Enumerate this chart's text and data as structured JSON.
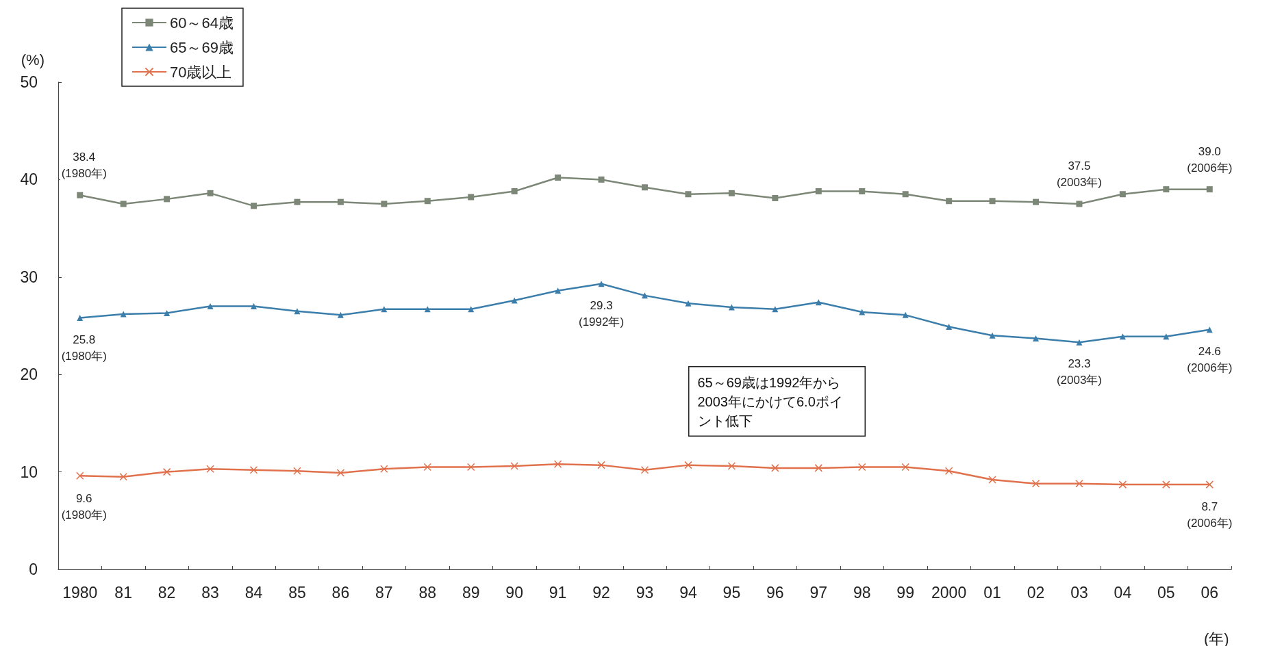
{
  "chart_data": {
    "type": "line",
    "ylabel": "(%)",
    "xlabel": "(年)",
    "categories": [
      "1980",
      "81",
      "82",
      "83",
      "84",
      "85",
      "86",
      "87",
      "88",
      "89",
      "90",
      "91",
      "92",
      "93",
      "94",
      "95",
      "96",
      "97",
      "98",
      "99",
      "2000",
      "01",
      "02",
      "03",
      "04",
      "05",
      "06"
    ],
    "series": [
      {
        "name": "60～64歳",
        "color": "#7d8777",
        "marker": "square",
        "values": [
          38.4,
          37.5,
          38.0,
          38.6,
          37.3,
          37.7,
          37.7,
          37.5,
          37.8,
          38.2,
          38.8,
          40.2,
          40.0,
          39.2,
          38.5,
          38.6,
          38.1,
          38.8,
          38.8,
          38.5,
          37.8,
          37.8,
          37.7,
          37.5,
          38.5,
          39.0,
          39.0
        ],
        "value_labels": [
          "38.4\n(1980年)",
          null,
          null,
          null,
          null,
          null,
          null,
          null,
          null,
          null,
          null,
          null,
          null,
          null,
          null,
          null,
          null,
          null,
          null,
          null,
          null,
          null,
          null,
          "37.5\n(2003年)",
          null,
          null,
          "39.0\n(2006年)"
        ]
      },
      {
        "name": "65～69歳",
        "color": "#3b7eab",
        "marker": "triangle",
        "values": [
          25.8,
          26.2,
          26.3,
          27.0,
          27.0,
          26.5,
          26.1,
          26.7,
          26.7,
          26.7,
          27.6,
          28.6,
          29.3,
          28.1,
          27.3,
          26.9,
          26.7,
          27.4,
          26.4,
          26.1,
          24.9,
          24.0,
          23.7,
          23.3,
          23.9,
          23.9,
          24.6
        ],
        "value_labels": [
          "25.8\n(1980年)",
          null,
          null,
          null,
          null,
          null,
          null,
          null,
          null,
          null,
          null,
          null,
          "29.3\n(1992年)",
          null,
          null,
          null,
          null,
          null,
          null,
          null,
          null,
          null,
          null,
          "23.3\n(2003年)",
          null,
          null,
          "24.6\n(2006年)"
        ]
      },
      {
        "name": "70歳以上",
        "color": "#e0714c",
        "marker": "cross",
        "values": [
          9.6,
          9.5,
          10.0,
          10.3,
          10.2,
          10.1,
          9.9,
          10.3,
          10.5,
          10.5,
          10.6,
          10.8,
          10.7,
          10.2,
          10.7,
          10.6,
          10.4,
          10.4,
          10.5,
          10.5,
          10.1,
          9.2,
          8.8,
          8.8,
          8.7,
          8.7,
          8.7
        ],
        "value_labels": [
          "9.6\n(1980年)",
          null,
          null,
          null,
          null,
          null,
          null,
          null,
          null,
          null,
          null,
          null,
          null,
          null,
          null,
          null,
          null,
          null,
          null,
          null,
          null,
          null,
          null,
          null,
          null,
          null,
          "8.7\n(2006年)"
        ]
      }
    ],
    "ylim": [
      0,
      50
    ],
    "yticks": [
      0,
      10,
      20,
      30,
      40,
      50
    ],
    "grid": false,
    "legend": "top left",
    "line_style": "solid",
    "annotations": [
      "65～69歳は1992年から2003年にかけて6.0ポイント低下"
    ]
  }
}
